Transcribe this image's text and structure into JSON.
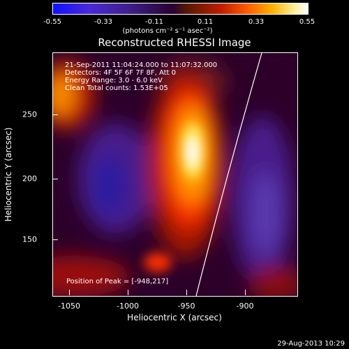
{
  "colorbar": {
    "ticks": [
      "-0.55",
      "-0.33",
      "-0.11",
      "0.11",
      "0.33",
      "0.55"
    ],
    "units": "(photons cm⁻² s⁻¹ asec⁻²)"
  },
  "title": "Reconstructed RHESSI Image",
  "info": {
    "line1": "21-Sep-2011 11:04:24.000 to 11:07:32.000",
    "line2": "Detectors: 4F 5F 6F 7F 8F, Att 0",
    "line3": "Energy Range: 3.0 - 6.0 keV",
    "line4": "Clean    Total counts: 1.53E+05"
  },
  "peak": "Position of Peak = [-948,217]",
  "axes": {
    "xlabel": "Heliocentric X (arcsec)",
    "ylabel": "Heliocentric Y (arcsec)",
    "xticks": [
      "-1050",
      "-1000",
      "-950",
      "-900"
    ],
    "yticks": [
      "250",
      "200",
      "150"
    ]
  },
  "timestamp": "29-Aug-2013 10:29"
}
